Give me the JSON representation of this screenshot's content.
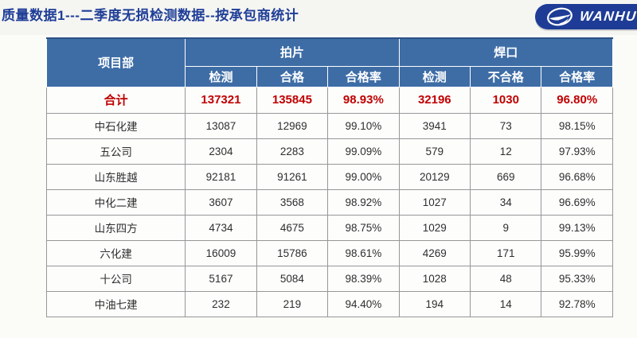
{
  "page": {
    "title": "质量数据1---二季度无损检测数据--按承包商统计",
    "logo_text": "WANHU",
    "colors": {
      "title_text": "#1f3e97",
      "header_bg": "#3e6da6",
      "header_text": "#ffffff",
      "total_text": "#c00000",
      "logo_bg": "#1e3c96",
      "body_text": "#2e2e2e",
      "border": "#979797"
    }
  },
  "table": {
    "project_header": "项目部",
    "group_headers": {
      "film": "拍片",
      "weld": "焊口"
    },
    "sub_headers": [
      "检测",
      "合格",
      "合格率",
      "检测",
      "不合格",
      "合格率"
    ],
    "total_row": {
      "label": "合计",
      "values": [
        "137321",
        "135845",
        "98.93%",
        "32196",
        "1030",
        "96.80%"
      ]
    },
    "rows": [
      {
        "label": "中石化建",
        "values": [
          "13087",
          "12969",
          "99.10%",
          "3941",
          "73",
          "98.15%"
        ]
      },
      {
        "label": "五公司",
        "values": [
          "2304",
          "2283",
          "99.09%",
          "579",
          "12",
          "97.93%"
        ]
      },
      {
        "label": "山东胜越",
        "values": [
          "92181",
          "91261",
          "99.00%",
          "20129",
          "669",
          "96.68%"
        ]
      },
      {
        "label": "中化二建",
        "values": [
          "3607",
          "3568",
          "98.92%",
          "1027",
          "34",
          "96.69%"
        ]
      },
      {
        "label": "山东四方",
        "values": [
          "4734",
          "4675",
          "98.75%",
          "1029",
          "9",
          "99.13%"
        ]
      },
      {
        "label": "六化建",
        "values": [
          "16009",
          "15786",
          "98.61%",
          "4269",
          "171",
          "95.99%"
        ]
      },
      {
        "label": "十公司",
        "values": [
          "5167",
          "5084",
          "98.39%",
          "1028",
          "48",
          "95.33%"
        ]
      },
      {
        "label": "中油七建",
        "values": [
          "232",
          "219",
          "94.40%",
          "194",
          "14",
          "92.78%"
        ]
      }
    ]
  }
}
